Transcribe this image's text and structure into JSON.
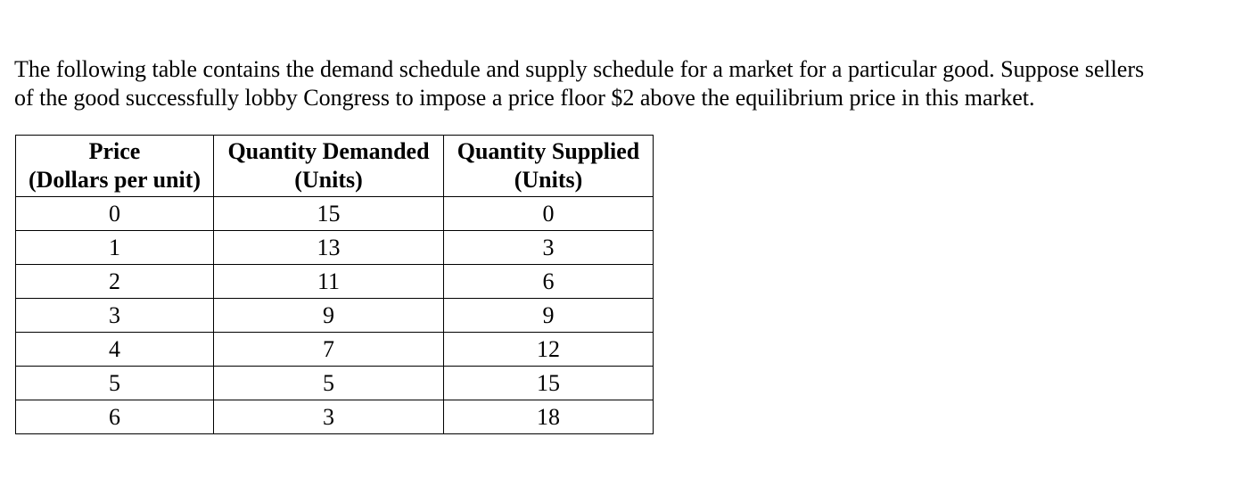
{
  "intro": {
    "line1": "The following table contains the demand schedule and supply schedule for a market for a particular good. Suppose sellers",
    "line2": "of the good successfully lobby Congress to impose a price floor $2 above the equilibrium price in this market."
  },
  "table": {
    "headers": [
      {
        "line1": "Price",
        "line2": "(Dollars per unit)"
      },
      {
        "line1": "Quantity Demanded",
        "line2": "(Units)"
      },
      {
        "line1": "Quantity Supplied",
        "line2": "(Units)"
      }
    ],
    "rows": [
      [
        "0",
        "15",
        "0"
      ],
      [
        "1",
        "13",
        "3"
      ],
      [
        "2",
        "11",
        "6"
      ],
      [
        "3",
        "9",
        "9"
      ],
      [
        "4",
        "7",
        "12"
      ],
      [
        "5",
        "5",
        "15"
      ],
      [
        "6",
        "3",
        "18"
      ]
    ]
  }
}
